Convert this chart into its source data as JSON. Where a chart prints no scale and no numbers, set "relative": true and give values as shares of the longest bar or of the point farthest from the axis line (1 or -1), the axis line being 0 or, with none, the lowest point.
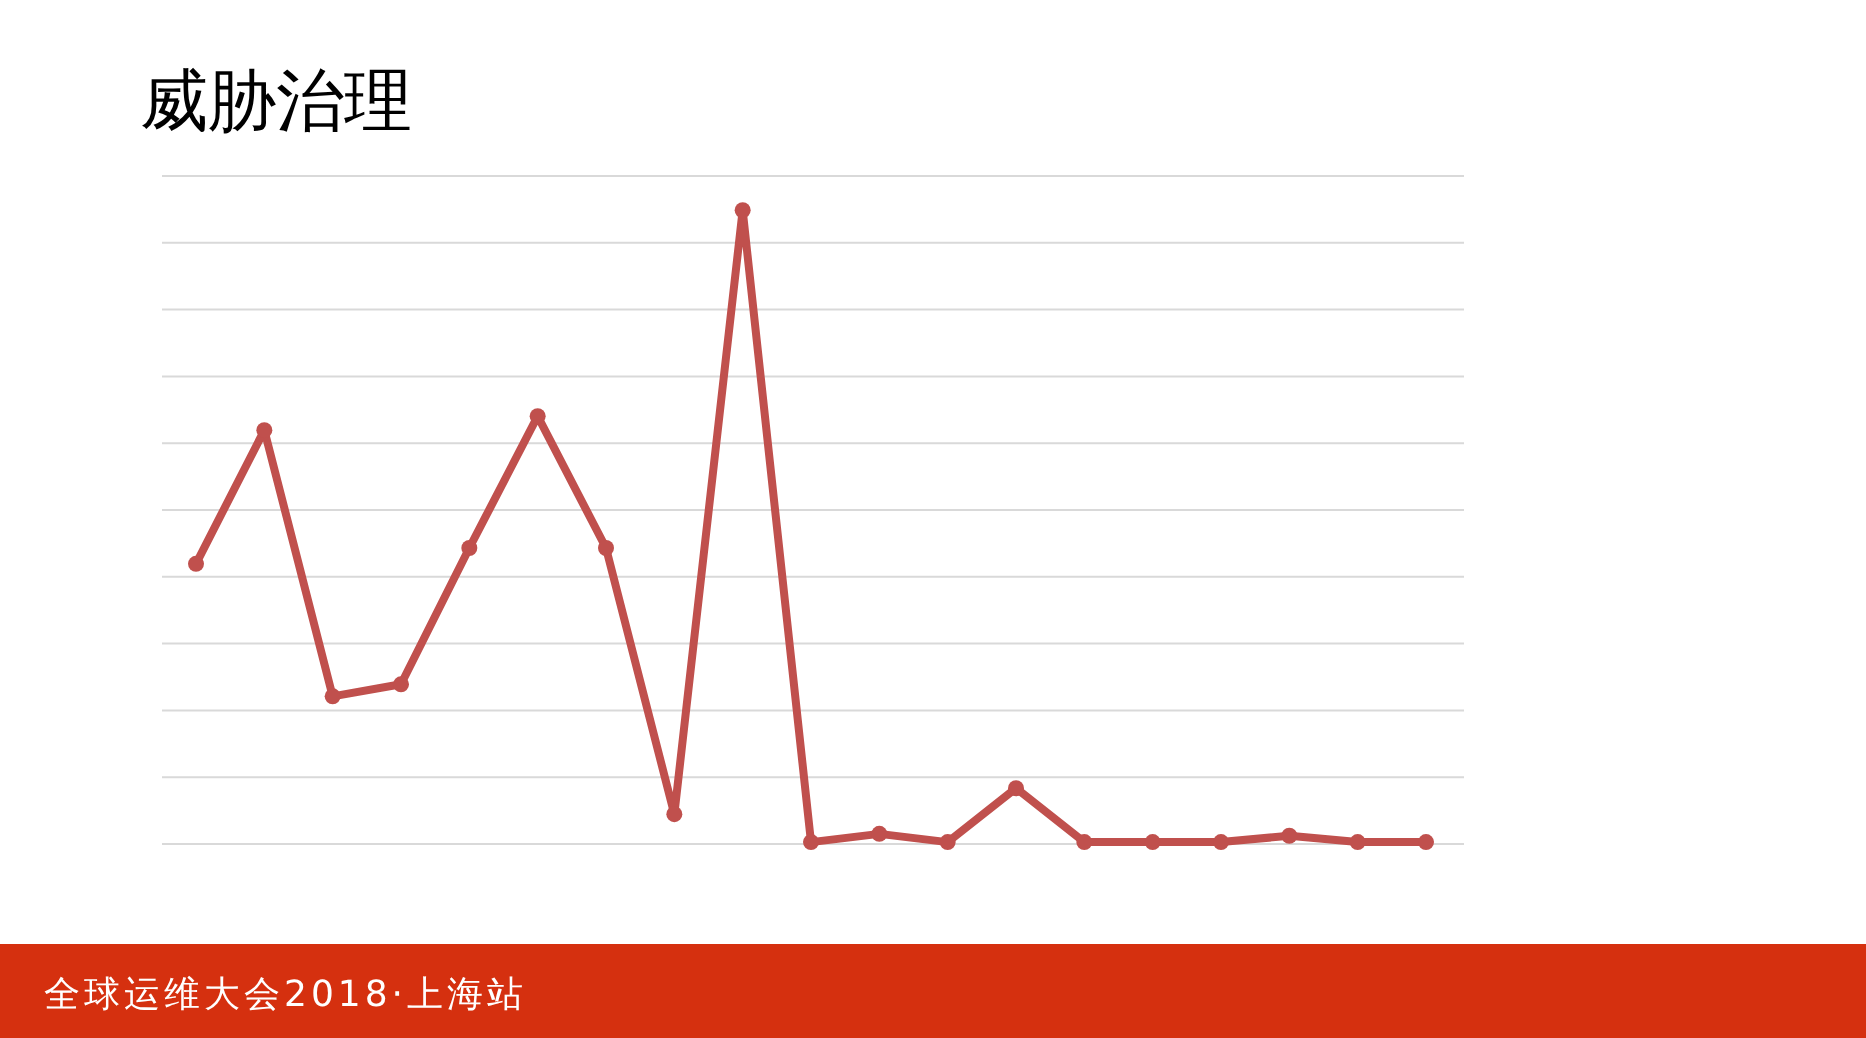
{
  "chart_data": {
    "type": "line",
    "title": "威胁治理",
    "categories": [
      null,
      null,
      null,
      null,
      null,
      null,
      null,
      null,
      null,
      null,
      null,
      null,
      null,
      null,
      null,
      null,
      null,
      null,
      null
    ],
    "values": [
      0.442,
      0.653,
      0.233,
      0.252,
      0.467,
      0.675,
      0.467,
      0.047,
      1,
      0.003,
      0.016,
      0.003,
      0.088,
      0.003,
      0.003,
      0.003,
      0.013,
      0.003,
      0.003
    ],
    "color": "#c0504d",
    "relative": true,
    "grid": "y",
    "marker": "circle",
    "annotations": [
      "全球运维大会2018·上海站"
    ]
  }
}
